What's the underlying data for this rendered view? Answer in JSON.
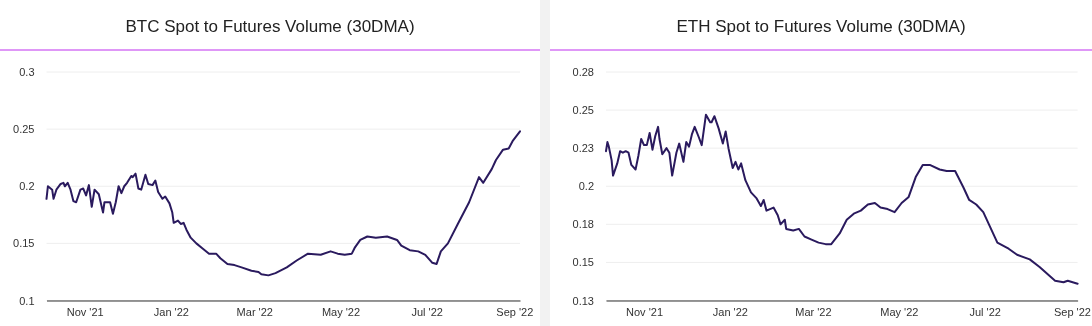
{
  "chart_data": [
    {
      "type": "line",
      "title": "BTC Spot to Futures Volume (30DMA)",
      "xlim": [
        "2021-10-05",
        "2022-09-05"
      ],
      "xticks": [
        {
          "value": "2021-11-01",
          "label": "Nov '21"
        },
        {
          "value": "2022-01-01",
          "label": "Jan '22"
        },
        {
          "value": "2022-03-01",
          "label": "Mar '22"
        },
        {
          "value": "2022-05-01",
          "label": "May '22"
        },
        {
          "value": "2022-07-01",
          "label": "Jul '22"
        },
        {
          "value": "2022-09-01",
          "label": "Sep '22"
        }
      ],
      "ylim": [
        0.1,
        0.3
      ],
      "yticks": [
        0.1,
        0.15,
        0.2,
        0.25,
        0.3
      ],
      "grid": "y",
      "line_style": "solid",
      "marker": "none",
      "series": [
        {
          "color": "#2a1a5e",
          "x": [
            "2021-10-05",
            "2021-10-06",
            "2021-10-09",
            "2021-10-10",
            "2021-10-12",
            "2021-10-15",
            "2021-10-17",
            "2021-10-18",
            "2021-10-20",
            "2021-10-22",
            "2021-10-24",
            "2021-10-26",
            "2021-10-29",
            "2021-10-31",
            "2021-11-02",
            "2021-11-04",
            "2021-11-06",
            "2021-11-08",
            "2021-11-11",
            "2021-11-14",
            "2021-11-15",
            "2021-11-19",
            "2021-11-21",
            "2021-11-23",
            "2021-11-25",
            "2021-11-27",
            "2021-11-29",
            "2021-12-01",
            "2021-12-04",
            "2021-12-05",
            "2021-12-07",
            "2021-12-09",
            "2021-12-11",
            "2021-12-14",
            "2021-12-16",
            "2021-12-19",
            "2021-12-21",
            "2021-12-23",
            "2021-12-26",
            "2021-12-28",
            "2021-12-31",
            "2022-01-02",
            "2022-01-03",
            "2022-01-06",
            "2022-01-08",
            "2022-01-10",
            "2022-01-12",
            "2022-01-15",
            "2022-01-19",
            "2022-01-23",
            "2022-01-28",
            "2022-02-02",
            "2022-02-05",
            "2022-02-10",
            "2022-02-15",
            "2022-02-20",
            "2022-02-27",
            "2022-03-04",
            "2022-03-06",
            "2022-03-11",
            "2022-03-16",
            "2022-03-24",
            "2022-03-31",
            "2022-04-08",
            "2022-04-17",
            "2022-04-24",
            "2022-04-29",
            "2022-05-04",
            "2022-05-09",
            "2022-05-11",
            "2022-05-15",
            "2022-05-20",
            "2022-05-26",
            "2022-06-03",
            "2022-06-10",
            "2022-06-13",
            "2022-06-19",
            "2022-06-25",
            "2022-06-30",
            "2022-07-05",
            "2022-07-08",
            "2022-07-11",
            "2022-07-16",
            "2022-07-23",
            "2022-07-31",
            "2022-08-07",
            "2022-08-10",
            "2022-08-16",
            "2022-08-19",
            "2022-08-24",
            "2022-08-28",
            "2022-08-31",
            "2022-09-05"
          ],
          "values": [
            0.189,
            0.2,
            0.197,
            0.189,
            0.197,
            0.202,
            0.203,
            0.2,
            0.203,
            0.197,
            0.187,
            0.186,
            0.197,
            0.198,
            0.192,
            0.201,
            0.182,
            0.197,
            0.193,
            0.177,
            0.186,
            0.186,
            0.176,
            0.186,
            0.2,
            0.194,
            0.2,
            0.203,
            0.209,
            0.208,
            0.211,
            0.198,
            0.197,
            0.21,
            0.202,
            0.201,
            0.205,
            0.195,
            0.189,
            0.191,
            0.185,
            0.177,
            0.168,
            0.17,
            0.167,
            0.168,
            0.162,
            0.155,
            0.15,
            0.146,
            0.141,
            0.141,
            0.137,
            0.132,
            0.131,
            0.129,
            0.126,
            0.125,
            0.123,
            0.122,
            0.124,
            0.129,
            0.135,
            0.141,
            0.14,
            0.143,
            0.141,
            0.14,
            0.141,
            0.146,
            0.153,
            0.156,
            0.155,
            0.156,
            0.153,
            0.148,
            0.144,
            0.143,
            0.14,
            0.133,
            0.132,
            0.143,
            0.15,
            0.167,
            0.186,
            0.208,
            0.203,
            0.215,
            0.223,
            0.232,
            0.233,
            0.24,
            0.248
          ]
        }
      ]
    },
    {
      "type": "line",
      "title": "ETH Spot to Futures Volume (30DMA)",
      "xlim": [
        "2021-10-05",
        "2022-09-05"
      ],
      "xticks": [
        {
          "value": "2021-11-01",
          "label": "Nov '21"
        },
        {
          "value": "2022-01-01",
          "label": "Jan '22"
        },
        {
          "value": "2022-03-01",
          "label": "Mar '22"
        },
        {
          "value": "2022-05-01",
          "label": "May '22"
        },
        {
          "value": "2022-07-01",
          "label": "Jul '22"
        },
        {
          "value": "2022-09-01",
          "label": "Sep '22"
        }
      ],
      "ylim": [
        0.125,
        0.275
      ],
      "yticks": [
        {
          "value": 0.125,
          "label": "0.13"
        },
        {
          "value": 0.15,
          "label": "0.15"
        },
        {
          "value": 0.175,
          "label": "0.18"
        },
        {
          "value": 0.2,
          "label": "0.2"
        },
        {
          "value": 0.225,
          "label": "0.23"
        },
        {
          "value": 0.25,
          "label": "0.25"
        },
        {
          "value": 0.275,
          "label": "0.28"
        }
      ],
      "grid": "y",
      "line_style": "solid",
      "marker": "none",
      "series": [
        {
          "color": "#2a1a5e",
          "x": [
            "2021-10-05",
            "2021-10-06",
            "2021-10-07",
            "2021-10-09",
            "2021-10-10",
            "2021-10-13",
            "2021-10-15",
            "2021-10-17",
            "2021-10-19",
            "2021-10-21",
            "2021-10-23",
            "2021-10-26",
            "2021-10-28",
            "2021-10-30",
            "2021-11-01",
            "2021-11-03",
            "2021-11-05",
            "2021-11-07",
            "2021-11-09",
            "2021-11-11",
            "2021-11-12",
            "2021-11-14",
            "2021-11-17",
            "2021-11-19",
            "2021-11-21",
            "2021-11-24",
            "2021-11-26",
            "2021-11-29",
            "2021-12-01",
            "2021-12-03",
            "2021-12-05",
            "2021-12-07",
            "2021-12-10",
            "2021-12-12",
            "2021-12-15",
            "2021-12-18",
            "2021-12-19",
            "2021-12-21",
            "2021-12-24",
            "2021-12-27",
            "2021-12-29",
            "2021-12-31",
            "2022-01-03",
            "2022-01-05",
            "2022-01-07",
            "2022-01-09",
            "2022-01-12",
            "2022-01-16",
            "2022-01-20",
            "2022-01-23",
            "2022-01-25",
            "2022-01-27",
            "2022-02-01",
            "2022-02-04",
            "2022-02-06",
            "2022-02-09",
            "2022-02-10",
            "2022-02-15",
            "2022-02-19",
            "2022-02-23",
            "2022-02-28",
            "2022-03-05",
            "2022-03-10",
            "2022-03-14",
            "2022-03-20",
            "2022-03-25",
            "2022-03-30",
            "2022-04-04",
            "2022-04-09",
            "2022-04-14",
            "2022-04-18",
            "2022-04-23",
            "2022-04-28",
            "2022-05-03",
            "2022-05-08",
            "2022-05-13",
            "2022-05-18",
            "2022-05-23",
            "2022-05-30",
            "2022-06-04",
            "2022-06-10",
            "2022-06-16",
            "2022-06-20",
            "2022-06-25",
            "2022-06-30",
            "2022-07-05",
            "2022-07-10",
            "2022-07-18",
            "2022-07-24",
            "2022-08-02",
            "2022-08-09",
            "2022-08-15",
            "2022-08-20",
            "2022-08-26",
            "2022-08-29",
            "2022-09-05"
          ],
          "values": [
            0.223,
            0.229,
            0.226,
            0.217,
            0.207,
            0.215,
            0.223,
            0.222,
            0.223,
            0.222,
            0.214,
            0.211,
            0.22,
            0.231,
            0.227,
            0.227,
            0.235,
            0.224,
            0.233,
            0.239,
            0.231,
            0.221,
            0.225,
            0.222,
            0.207,
            0.222,
            0.228,
            0.216,
            0.229,
            0.226,
            0.234,
            0.239,
            0.232,
            0.227,
            0.247,
            0.242,
            0.242,
            0.246,
            0.238,
            0.228,
            0.236,
            0.225,
            0.212,
            0.216,
            0.211,
            0.215,
            0.204,
            0.196,
            0.192,
            0.187,
            0.191,
            0.184,
            0.186,
            0.181,
            0.175,
            0.178,
            0.172,
            0.171,
            0.172,
            0.167,
            0.165,
            0.163,
            0.162,
            0.162,
            0.169,
            0.178,
            0.182,
            0.184,
            0.188,
            0.189,
            0.186,
            0.185,
            0.183,
            0.189,
            0.193,
            0.206,
            0.214,
            0.214,
            0.211,
            0.21,
            0.21,
            0.199,
            0.191,
            0.188,
            0.183,
            0.173,
            0.163,
            0.159,
            0.155,
            0.152,
            0.147,
            0.142,
            0.138,
            0.137,
            0.138,
            0.136
          ]
        }
      ]
    }
  ]
}
